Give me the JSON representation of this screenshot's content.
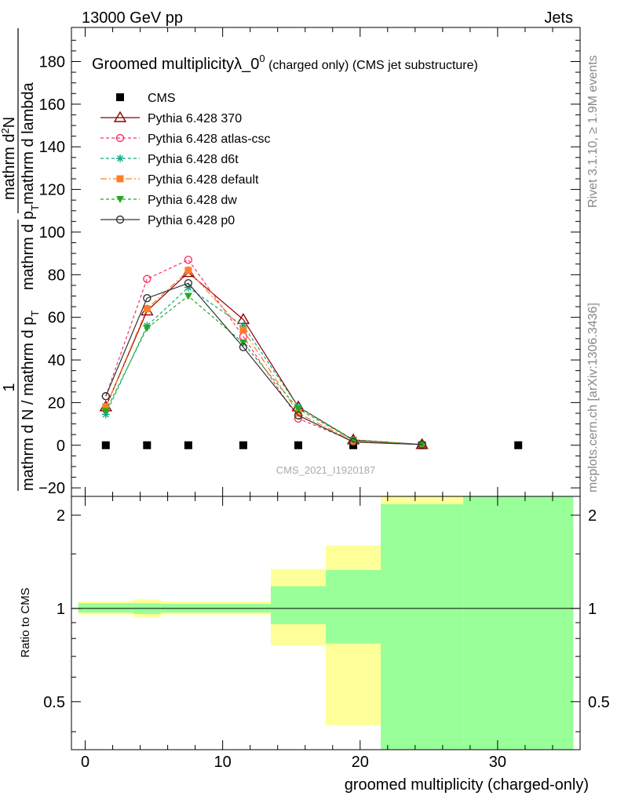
{
  "header": {
    "energy_label": "13000 GeV pp",
    "process_label": "Jets"
  },
  "side_labels": {
    "rivet": "Rivet 3.1.10, ≥ 1.9M events",
    "mcplots": "mcplots.cern.ch [arXiv:1306.3436]"
  },
  "watermark": "CMS_2021_I1920187",
  "chart_data": [
    {
      "type": "line",
      "title": "Groomed multiplicityλ_0",
      "title_superscript": "0",
      "title_suffix": " (charged only) (CMS jet substructure)",
      "ylabel_parts": {
        "numerator_1": "1",
        "denominator_1": "mathrm d N / mathrm d p",
        "sub_T_1": "T",
        "numerator_2": "mathrm d",
        "superscript_2": "2",
        "numerator_2b": "N",
        "denominator_2": "mathrm d p",
        "sub_T_2": "T",
        "denominator_2b": "mathrm d lambda"
      },
      "xlim": [
        -1,
        36
      ],
      "ylim": [
        -24,
        196
      ],
      "yticks": [
        -20,
        0,
        20,
        40,
        60,
        80,
        100,
        120,
        140,
        160,
        180
      ],
      "ytick_labels": [
        "−20",
        "0",
        "20",
        "40",
        "60",
        "80",
        "100",
        "120",
        "140",
        "160",
        "180"
      ],
      "legend_position": "top-left",
      "series": [
        {
          "name": "CMS",
          "color": "#000000",
          "style": "square-points",
          "x": [
            1.5,
            4.5,
            7.5,
            11.5,
            15.5,
            19.5,
            24.5,
            31.5
          ],
          "y": [
            0,
            0,
            0,
            0,
            0,
            0,
            0,
            0
          ]
        },
        {
          "name": "Pythia 6.428 370",
          "color": "#8b0000",
          "style": "solid-open-triangle",
          "x": [
            1.5,
            4.5,
            7.5,
            11.5,
            15.5,
            19.5,
            24.5
          ],
          "y": [
            18,
            63,
            81,
            59,
            18,
            2.5,
            0.3
          ]
        },
        {
          "name": "Pythia 6.428 atlas-csc",
          "color": "#ff3366",
          "style": "dashed-open-circle",
          "x": [
            1.5,
            4.5,
            7.5,
            11.5,
            15.5,
            19.5,
            24.5
          ],
          "y": [
            23,
            78,
            87,
            51,
            12.5,
            2,
            0.3
          ]
        },
        {
          "name": "Pythia 6.428 d6t",
          "color": "#11aa88",
          "style": "dashed-star",
          "x": [
            1.5,
            4.5,
            7.5,
            11.5,
            15.5,
            19.5,
            24.5
          ],
          "y": [
            14.5,
            56,
            74,
            56,
            18,
            2.5,
            0.3
          ]
        },
        {
          "name": "Pythia 6.428 default",
          "color": "#ff7f27",
          "style": "dashdot-filled-square",
          "x": [
            1.5,
            4.5,
            7.5,
            11.5,
            15.5,
            19.5,
            24.5
          ],
          "y": [
            18,
            64,
            82,
            54,
            15,
            2,
            0.3
          ]
        },
        {
          "name": "Pythia 6.428 dw",
          "color": "#22aa22",
          "style": "dashed-filled-triangle-down",
          "x": [
            1.5,
            4.5,
            7.5,
            11.5,
            15.5,
            19.5,
            24.5
          ],
          "y": [
            16,
            55,
            70,
            48,
            17,
            2.5,
            0.3
          ]
        },
        {
          "name": "Pythia 6.428 p0",
          "color": "#333333",
          "style": "solid-open-circle",
          "x": [
            1.5,
            4.5,
            7.5,
            11.5,
            15.5,
            19.5,
            24.5
          ],
          "y": [
            23,
            69,
            76,
            46,
            14,
            1.5,
            0.3
          ]
        }
      ]
    },
    {
      "type": "area",
      "ylabel": "Ratio to CMS",
      "xlabel": "groomed multiplicity (charged-only)",
      "xlim": [
        -1,
        36
      ],
      "ylim": [
        0.35,
        2.3
      ],
      "xticks": [
        0,
        10,
        20,
        30
      ],
      "xtick_labels": [
        "0",
        "10",
        "20",
        "30"
      ],
      "yticks": [
        0.5,
        1,
        2
      ],
      "ytick_labels": [
        "0.5",
        "1",
        "2"
      ],
      "band_colors": {
        "outer": "#ffff99",
        "inner": "#99ff99",
        "reference_line": "#000000"
      },
      "bins": [
        {
          "x0": -0.5,
          "x1": 3.5,
          "outer": [
            0.955,
            1.055
          ],
          "inner": [
            0.97,
            1.04
          ]
        },
        {
          "x0": 3.5,
          "x1": 5.5,
          "outer": [
            0.935,
            1.07
          ],
          "inner": [
            0.96,
            1.04
          ]
        },
        {
          "x0": 5.5,
          "x1": 13.5,
          "outer": [
            0.955,
            1.055
          ],
          "inner": [
            0.97,
            1.035
          ]
        },
        {
          "x0": 13.5,
          "x1": 17.5,
          "outer": [
            0.76,
            1.34
          ],
          "inner": [
            0.89,
            1.18
          ]
        },
        {
          "x0": 17.5,
          "x1": 21.5,
          "outer": [
            0.42,
            1.6
          ],
          "inner": [
            0.77,
            1.33
          ]
        },
        {
          "x0": 21.5,
          "x1": 27.5,
          "outer": [
            0.35,
            2.3
          ],
          "inner": [
            0.35,
            2.17
          ]
        },
        {
          "x0": 27.5,
          "x1": 35.5,
          "outer": [
            0.35,
            2.3
          ],
          "inner": [
            0.35,
            2.3
          ]
        }
      ]
    }
  ]
}
